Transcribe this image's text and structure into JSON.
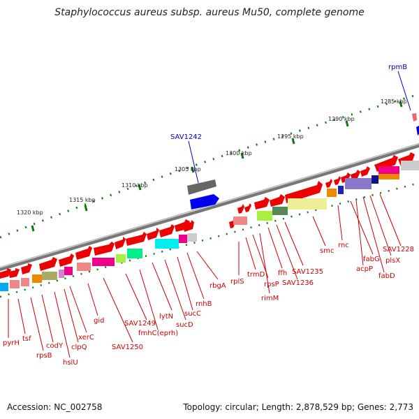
{
  "title": "Staphylococcus aureus subsp. aureus Mu50, complete genome",
  "footer": {
    "accession": "Accession: NC_002758",
    "topology": "Topology: circular; Length: 2,878,529 bp; Genes: 2,773"
  },
  "kbp_labels": [
    "1285 kbp",
    "1290 kbp",
    "1295 kbp",
    "1300 kbp",
    "1305 kbp",
    "1310 kbp",
    "1315 kbp",
    "1320 kbp"
  ],
  "genes_blue": [
    "rpmB",
    "SAV1242"
  ],
  "genes_red": [
    "pyrH",
    "tsf",
    "rpsB",
    "codY",
    "hslU",
    "clpQ",
    "xerC",
    "gid",
    "SAV1250",
    "SAV1249",
    "fmhC(eprh)",
    "lytN",
    "sucD",
    "sucC",
    "rnhB",
    "rbgA",
    "rplS",
    "trmD",
    "rpsP",
    "rimM",
    "ffh",
    "SAV1236",
    "SAV1235",
    "smc",
    "rnc",
    "fabG",
    "acpP",
    "plsX",
    "fabD",
    "SAV1228"
  ],
  "colors": {
    "gene_red": "#ee0000",
    "gene_blue": "#0000ee",
    "backbone": "#888888",
    "tick_green": "#117711",
    "label_red": "#cc0000",
    "label_blue": "#0000cc"
  }
}
